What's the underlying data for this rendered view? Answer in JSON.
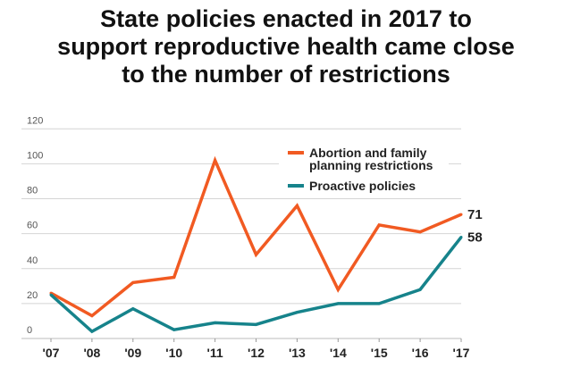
{
  "chart_data": {
    "type": "line",
    "title_lines": [
      "State policies enacted in 2017 to",
      "support reproductive health came close",
      "to the number of restrictions"
    ],
    "categories": [
      "'07",
      "'08",
      "'09",
      "'10",
      "'11",
      "'12",
      "'13",
      "'14",
      "'15",
      "'16",
      "'17"
    ],
    "ylim": [
      0,
      120
    ],
    "yticks": [
      0,
      20,
      40,
      60,
      80,
      100,
      120
    ],
    "grid": true,
    "legend_position": "top-right",
    "series": [
      {
        "name_lines": [
          "Abortion and family",
          "planning restrictions"
        ],
        "color": "#f15a22",
        "values": [
          26,
          13,
          32,
          35,
          102,
          48,
          76,
          28,
          65,
          61,
          71
        ],
        "end_label": "71"
      },
      {
        "name_lines": [
          "Proactive policies"
        ],
        "color": "#16838b",
        "values": [
          25,
          4,
          17,
          5,
          9,
          8,
          15,
          20,
          20,
          28,
          58
        ],
        "end_label": "58"
      }
    ]
  }
}
